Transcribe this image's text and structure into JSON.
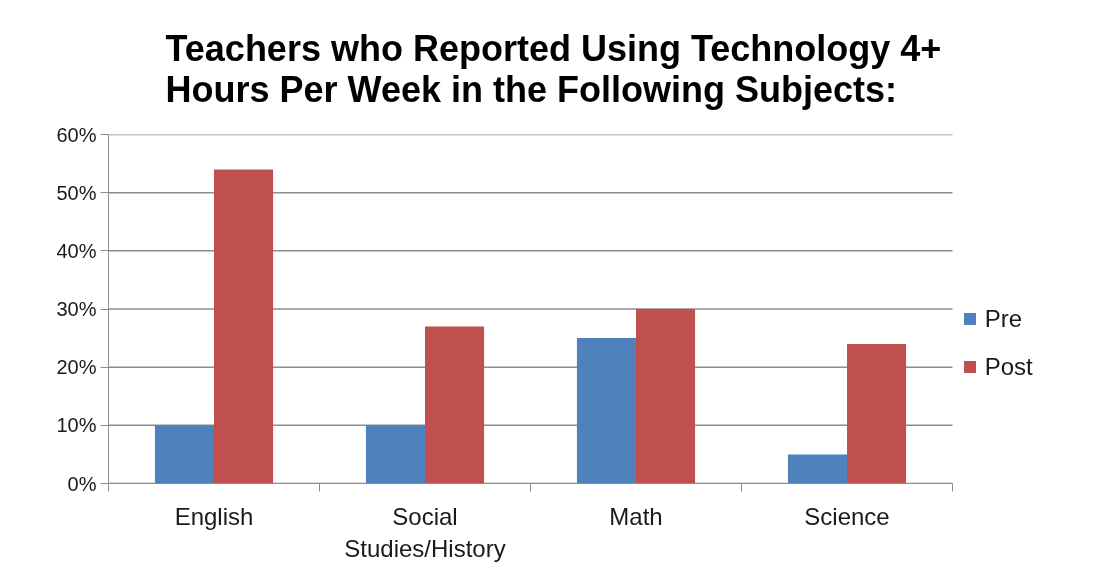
{
  "chart_data": {
    "type": "bar",
    "title": "Teachers who Reported Using Technology 4+ Hours Per Week in the Following Subjects:",
    "categories": [
      "English",
      "Social Studies/History",
      "Math",
      "Science"
    ],
    "series": [
      {
        "name": "Pre",
        "color": "#4f81bd",
        "values": [
          10,
          10,
          25,
          5
        ]
      },
      {
        "name": "Post",
        "color": "#c0504d",
        "values": [
          54,
          27,
          30,
          24
        ]
      }
    ],
    "ylim": [
      0,
      60
    ],
    "yticks": [
      {
        "value": 0,
        "label": "0%"
      },
      {
        "value": 10,
        "label": "10%"
      },
      {
        "value": 20,
        "label": "20%"
      },
      {
        "value": 30,
        "label": "30%"
      },
      {
        "value": 40,
        "label": "40%"
      },
      {
        "value": 50,
        "label": "50%"
      },
      {
        "value": 60,
        "label": "60%"
      }
    ],
    "grid": "y",
    "legend": "right"
  }
}
